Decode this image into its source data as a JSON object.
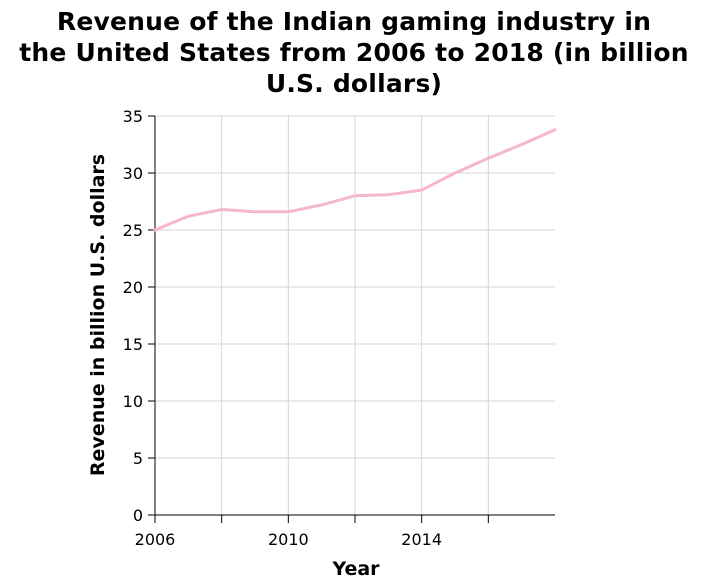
{
  "chart_data": {
    "type": "line",
    "title_lines": [
      "Revenue of the Indian gaming industry in",
      "the United States from 2006 to 2018 (in billion",
      "U.S. dollars)"
    ],
    "xlabel": "Year",
    "ylabel": "Revenue in billion U.S. dollars",
    "x_ticks": [
      2006,
      2008,
      2010,
      2012,
      2014,
      2016
    ],
    "x_tick_labels": [
      "2006",
      "",
      "2010",
      "",
      "2014",
      ""
    ],
    "y_ticks": [
      0,
      5,
      10,
      15,
      20,
      25,
      30,
      35
    ],
    "y_tick_labels": [
      "0",
      "5",
      "10",
      "15",
      "20",
      "25",
      "30",
      "35"
    ],
    "xlim": [
      2006,
      2018
    ],
    "ylim": [
      0,
      35
    ],
    "grid": true,
    "series": [
      {
        "color": "#f7b6cf",
        "x": [
          2006,
          2007,
          2008,
          2009,
          2010,
          2011,
          2012,
          2013,
          2014,
          2015,
          2016,
          2017,
          2018
        ],
        "y": [
          25.0,
          26.2,
          26.8,
          26.6,
          26.6,
          27.2,
          28.0,
          28.1,
          28.5,
          30.0,
          31.3,
          32.5,
          33.8
        ]
      }
    ]
  }
}
